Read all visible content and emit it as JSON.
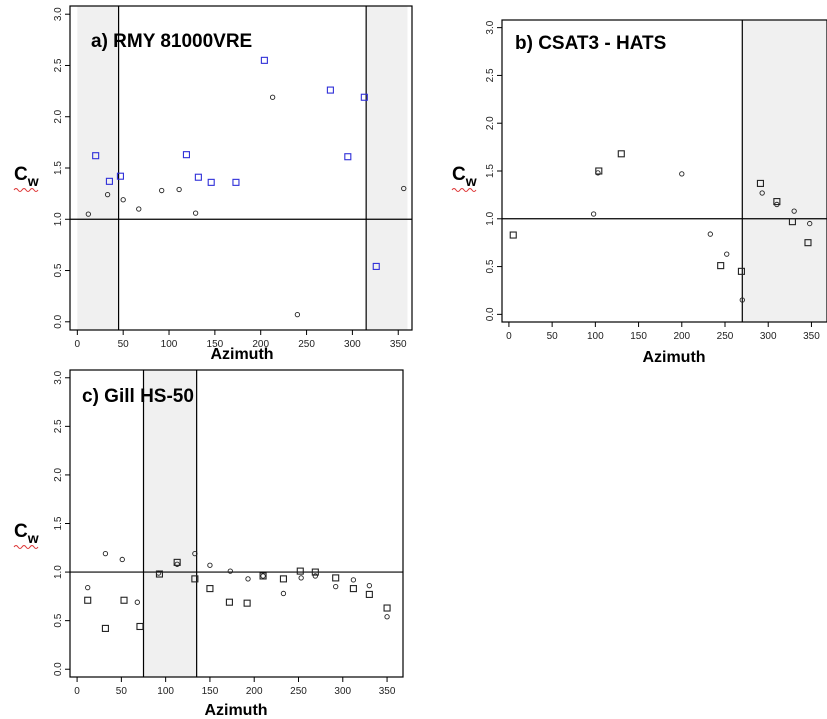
{
  "colors": {
    "shade": "#f0f0f0",
    "blue_marker": "#2f2fd8",
    "black_marker": "#222222",
    "spellcheck_underline": "#d33333"
  },
  "chart_data": [
    {
      "type": "scatter",
      "title": "a) RMY 81000VRE",
      "xlabel": "Azimuth",
      "ylabel": "Cw",
      "xlim": [
        -8,
        365
      ],
      "ylim": [
        -0.08,
        3.08
      ],
      "xticks": [
        "0",
        "50",
        "100",
        "150",
        "200",
        "250",
        "300",
        "350"
      ],
      "yticks": [
        "0.0",
        "0.5",
        "1.0",
        "1.5",
        "2.0",
        "2.5",
        "3.0"
      ],
      "reference_y": 1.0,
      "vertical_lines": [
        45,
        315
      ],
      "shaded_ranges": [
        [
          0,
          45
        ],
        [
          315,
          360
        ]
      ],
      "series": [
        {
          "marker": "circle",
          "color": "#222222",
          "points": [
            [
              12,
              1.05
            ],
            [
              33,
              1.24
            ],
            [
              50,
              1.19
            ],
            [
              67,
              1.1
            ],
            [
              92,
              1.28
            ],
            [
              111,
              1.29
            ],
            [
              129,
              1.06
            ],
            [
              213,
              2.19
            ],
            [
              240,
              0.07
            ],
            [
              356,
              1.3
            ]
          ]
        },
        {
          "marker": "square",
          "color": "#2f2fd8",
          "points": [
            [
              20,
              1.62
            ],
            [
              35,
              1.37
            ],
            [
              47,
              1.42
            ],
            [
              119,
              1.63
            ],
            [
              132,
              1.41
            ],
            [
              146,
              1.36
            ],
            [
              173,
              1.36
            ],
            [
              204,
              2.55
            ],
            [
              276,
              2.26
            ],
            [
              295,
              1.61
            ],
            [
              313,
              2.19
            ],
            [
              326,
              0.54
            ]
          ]
        }
      ]
    },
    {
      "type": "scatter",
      "title": "b) CSAT3 - HATS",
      "xlabel": "Azimuth",
      "ylabel": "Cw",
      "xlim": [
        -8,
        368
      ],
      "ylim": [
        -0.08,
        3.08
      ],
      "xticks": [
        "0",
        "50",
        "100",
        "150",
        "200",
        "250",
        "300",
        "350"
      ],
      "yticks": [
        "0.0",
        "0.5",
        "1.0",
        "1.5",
        "2.0",
        "2.5",
        "3.0"
      ],
      "reference_y": 1.0,
      "vertical_lines": [
        270
      ],
      "shaded_ranges": [
        [
          270,
          368
        ]
      ],
      "series": [
        {
          "marker": "circle",
          "color": "#222222",
          "points": [
            [
              98,
              1.05
            ],
            [
              103,
              1.48
            ],
            [
              200,
              1.47
            ],
            [
              233,
              0.84
            ],
            [
              252,
              0.63
            ],
            [
              270,
              0.15
            ],
            [
              293,
              1.27
            ],
            [
              310,
              1.15
            ],
            [
              330,
              1.08
            ],
            [
              348,
              0.95
            ]
          ]
        },
        {
          "marker": "square",
          "color": "#222222",
          "points": [
            [
              5,
              0.83
            ],
            [
              104,
              1.5
            ],
            [
              130,
              1.68
            ],
            [
              245,
              0.51
            ],
            [
              269,
              0.45
            ],
            [
              291,
              1.37
            ],
            [
              310,
              1.18
            ],
            [
              328,
              0.97
            ],
            [
              346,
              0.75
            ]
          ]
        }
      ]
    },
    {
      "type": "scatter",
      "title": "c) Gill HS-50",
      "xlabel": "Azimuth",
      "ylabel": "Cw",
      "xlim": [
        -8,
        368
      ],
      "ylim": [
        -0.08,
        3.08
      ],
      "xticks": [
        "0",
        "50",
        "100",
        "150",
        "200",
        "250",
        "300",
        "350"
      ],
      "yticks": [
        "0.0",
        "0.5",
        "1.0",
        "1.5",
        "2.0",
        "2.5",
        "3.0"
      ],
      "reference_y": 1.0,
      "vertical_lines": [
        75,
        135
      ],
      "shaded_ranges": [
        [
          75,
          135
        ]
      ],
      "series": [
        {
          "marker": "circle",
          "color": "#222222",
          "points": [
            [
              12,
              0.84
            ],
            [
              32,
              1.19
            ],
            [
              51,
              1.13
            ],
            [
              68,
              0.69
            ],
            [
              92,
              0.99
            ],
            [
              113,
              1.08
            ],
            [
              133,
              1.19
            ],
            [
              150,
              1.07
            ],
            [
              173,
              1.01
            ],
            [
              193,
              0.93
            ],
            [
              210,
              0.96
            ],
            [
              233,
              0.78
            ],
            [
              253,
              0.94
            ],
            [
              269,
              0.96
            ],
            [
              292,
              0.85
            ],
            [
              312,
              0.92
            ],
            [
              330,
              0.86
            ],
            [
              350,
              0.54
            ]
          ]
        },
        {
          "marker": "square",
          "color": "#222222",
          "points": [
            [
              12,
              0.71
            ],
            [
              32,
              0.42
            ],
            [
              53,
              0.71
            ],
            [
              71,
              0.44
            ],
            [
              93,
              0.98
            ],
            [
              113,
              1.1
            ],
            [
              133,
              0.93
            ],
            [
              150,
              0.83
            ],
            [
              172,
              0.69
            ],
            [
              192,
              0.68
            ],
            [
              210,
              0.96
            ],
            [
              233,
              0.93
            ],
            [
              252,
              1.01
            ],
            [
              269,
              1.0
            ],
            [
              292,
              0.94
            ],
            [
              312,
              0.83
            ],
            [
              330,
              0.77
            ],
            [
              350,
              0.63
            ]
          ]
        }
      ]
    }
  ]
}
